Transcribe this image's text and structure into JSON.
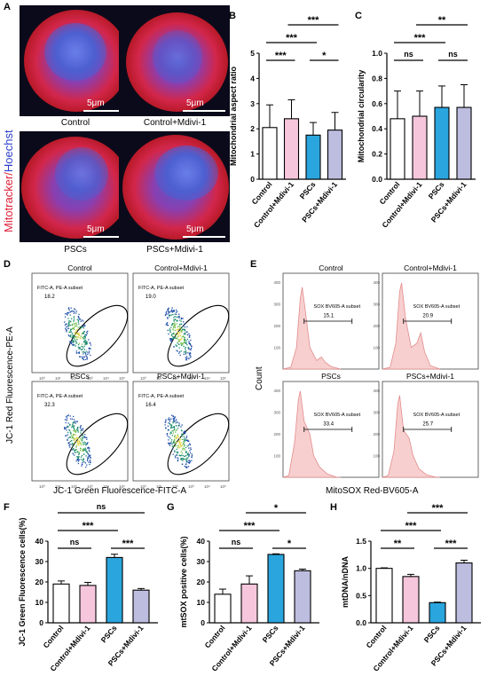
{
  "panel_letters": {
    "a": "A",
    "b": "B",
    "c": "C",
    "d": "D",
    "e": "E",
    "f": "F",
    "g": "G",
    "h": "H"
  },
  "panel_a": {
    "ylabel_red": "Mitotracker/",
    "ylabel_blue": "Hoechst",
    "scale_text": "5μm",
    "captions": [
      "Control",
      "Control+Mdivi-1",
      "PSCs",
      "PSCs+Mdivi-1"
    ]
  },
  "panel_d": {
    "titles": [
      "Control",
      "Control+Mdivi-1",
      "PSCs",
      "PSCs+Mdivi-1"
    ],
    "gate_name": "FITC-A, PE-A subset",
    "gate_values": [
      "18.2",
      "19.0",
      "32.3",
      "16.4"
    ],
    "ylabel": "JC-1 Red Fluorescence-PE-A",
    "xlabel": "JC-1 Green Fluorescence-FITC-A"
  },
  "panel_e": {
    "titles": [
      "Control",
      "Control+Mdivi-1",
      "PSCs",
      "PSCs+Mdivi-1"
    ],
    "gate_name": "SOX BV605-A subset",
    "gate_values": [
      "15.1",
      "20.9",
      "33.4",
      "25.7"
    ],
    "ylabel": "Count",
    "xlabel": "MitoSOX Red-BV605-A"
  },
  "colors": {
    "control": "#ffffff",
    "control_mdivi": "#f6c6dc",
    "pscs": "#2aa5dd",
    "pscs_mdivi": "#bdbde0",
    "cytometry_dot": "#2a8a60",
    "hist_fill": "#f7cfcf",
    "hist_line": "#e38c8c"
  },
  "chart_data": [
    {
      "id": "B",
      "type": "bar",
      "categories": [
        "Control",
        "Control+Mdivi-1",
        "PSCs",
        "PSCs+Mdivi-1"
      ],
      "values": [
        2.05,
        2.4,
        1.75,
        1.95
      ],
      "errors": [
        0.9,
        0.75,
        0.5,
        0.7
      ],
      "ylabel": "Mitochondrial aspect ratio",
      "ylim": [
        0,
        5
      ],
      "yticks": [
        0,
        1,
        2,
        3,
        4,
        5
      ],
      "significance": [
        {
          "from": 0,
          "to": 1,
          "label": "***",
          "level": 1
        },
        {
          "from": 2,
          "to": 3,
          "label": "*",
          "level": 1
        },
        {
          "from": 0,
          "to": 2,
          "label": "***",
          "level": 2
        },
        {
          "from": 1,
          "to": 3,
          "label": "***",
          "level": 3
        }
      ]
    },
    {
      "id": "C",
      "type": "bar",
      "categories": [
        "Control",
        "Control+Mdivi-1",
        "PSCs",
        "PSCs+Mdivi-1"
      ],
      "values": [
        0.48,
        0.5,
        0.57,
        0.57
      ],
      "errors": [
        0.22,
        0.2,
        0.17,
        0.18
      ],
      "ylabel": "Mitochondrial circularity",
      "ylim": [
        0,
        1.0
      ],
      "yticks": [
        0.0,
        0.2,
        0.4,
        0.6,
        0.8,
        1.0
      ],
      "significance": [
        {
          "from": 0,
          "to": 1,
          "label": "ns",
          "level": 1
        },
        {
          "from": 2,
          "to": 3,
          "label": "ns",
          "level": 1
        },
        {
          "from": 0,
          "to": 2,
          "label": "***",
          "level": 2
        },
        {
          "from": 1,
          "to": 3,
          "label": "**",
          "level": 3
        }
      ]
    },
    {
      "id": "F",
      "type": "bar",
      "categories": [
        "Control",
        "Control+Mdivi-1",
        "PSCs",
        "PSCs+Mdivi-1"
      ],
      "values": [
        19,
        18.3,
        32,
        16
      ],
      "errors": [
        1.5,
        1.5,
        1.6,
        0.8
      ],
      "ylabel": "JC-1 Green Fluorescence cells(%)",
      "ylim": [
        0,
        40
      ],
      "yticks": [
        0,
        10,
        20,
        30,
        40
      ],
      "significance": [
        {
          "from": 0,
          "to": 1,
          "label": "ns",
          "level": 1
        },
        {
          "from": 2,
          "to": 3,
          "label": "***",
          "level": 1
        },
        {
          "from": 0,
          "to": 2,
          "label": "***",
          "level": 2
        },
        {
          "from": 0,
          "to": 3,
          "label": "ns",
          "level": 3
        }
      ]
    },
    {
      "id": "G",
      "type": "bar",
      "categories": [
        "Control",
        "Control+Mdivi-1",
        "PSCs",
        "PSCs+Mdivi-1"
      ],
      "values": [
        14,
        19,
        33.5,
        25.5
      ],
      "errors": [
        2.5,
        4,
        0.3,
        0.8
      ],
      "ylabel": "mtSOX positive cells(%)",
      "ylim": [
        0,
        40
      ],
      "yticks": [
        0,
        10,
        20,
        30,
        40
      ],
      "significance": [
        {
          "from": 0,
          "to": 1,
          "label": "ns",
          "level": 1
        },
        {
          "from": 2,
          "to": 3,
          "label": "*",
          "level": 1
        },
        {
          "from": 0,
          "to": 2,
          "label": "***",
          "level": 2
        },
        {
          "from": 1,
          "to": 3,
          "label": "*",
          "level": 3
        }
      ]
    },
    {
      "id": "H",
      "type": "bar",
      "categories": [
        "Control",
        "Control+Mdivi-1",
        "PSCs",
        "PSCs+Mdivi-1"
      ],
      "values": [
        1.0,
        0.85,
        0.37,
        1.1
      ],
      "errors": [
        0.01,
        0.04,
        0.01,
        0.05
      ],
      "ylabel": "mtDNA/nDNA",
      "ylim": [
        0,
        1.5
      ],
      "yticks": [
        0.0,
        0.5,
        1.0,
        1.5
      ],
      "significance": [
        {
          "from": 0,
          "to": 1,
          "label": "**",
          "level": 1
        },
        {
          "from": 2,
          "to": 3,
          "label": "***",
          "level": 1
        },
        {
          "from": 0,
          "to": 2,
          "label": "***",
          "level": 2
        },
        {
          "from": 1,
          "to": 3,
          "label": "***",
          "level": 3
        }
      ]
    }
  ]
}
